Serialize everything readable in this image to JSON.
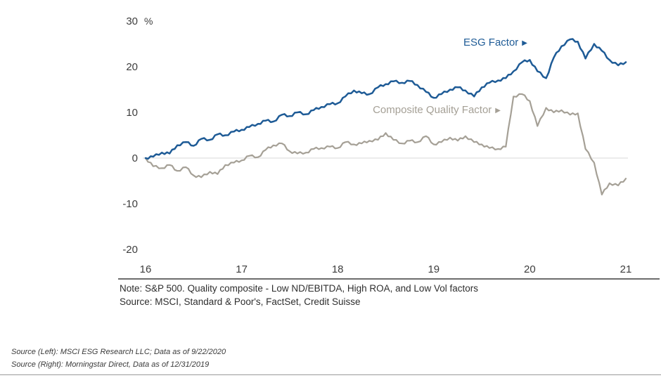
{
  "chart_data": {
    "type": "line",
    "title": "",
    "unit_label": "%",
    "xlim": [
      16,
      21
    ],
    "ylim": [
      -20,
      30
    ],
    "xticks": [
      16,
      17,
      18,
      19,
      20,
      21
    ],
    "yticks": [
      30,
      20,
      10,
      0,
      -10,
      -20
    ],
    "grid": "zero-line-only",
    "legend_position": "inline-annotations",
    "x": [
      16,
      16.08,
      16.17,
      16.25,
      16.33,
      16.42,
      16.5,
      16.58,
      16.67,
      16.75,
      16.83,
      16.92,
      17,
      17.08,
      17.17,
      17.25,
      17.33,
      17.42,
      17.5,
      17.58,
      17.67,
      17.75,
      17.83,
      17.92,
      18,
      18.08,
      18.17,
      18.25,
      18.33,
      18.42,
      18.5,
      18.58,
      18.67,
      18.75,
      18.83,
      18.92,
      19,
      19.08,
      19.17,
      19.25,
      19.33,
      19.42,
      19.5,
      19.58,
      19.67,
      19.75,
      19.83,
      19.92,
      20,
      20.08,
      20.17,
      20.25,
      20.33,
      20.42,
      20.5,
      20.58,
      20.67,
      20.75,
      20.83,
      20.92,
      21
    ],
    "series": [
      {
        "name": "ESG Factor",
        "color": "#1e5b96",
        "values": [
          0,
          0.3,
          1.2,
          1.0,
          2.8,
          3.5,
          2.7,
          4.2,
          4.0,
          5.2,
          5.0,
          5.8,
          6.2,
          6.8,
          7.5,
          8.2,
          8.0,
          9.5,
          9.2,
          10.0,
          9.6,
          10.5,
          11.2,
          11.8,
          12.0,
          13.5,
          14.8,
          14.2,
          14.0,
          15.5,
          16.2,
          16.8,
          16.5,
          16.9,
          16.0,
          14.5,
          13.2,
          14.0,
          15.0,
          15.5,
          14.8,
          13.5,
          15.5,
          16.5,
          17.0,
          17.5,
          19.0,
          21.0,
          21.5,
          19.0,
          17.5,
          22.0,
          24.5,
          26.0,
          25.5,
          21.8,
          25.0,
          23.5,
          21.5,
          20.3,
          21.0
        ]
      },
      {
        "name": "Composite Quality Factor",
        "color": "#a5a096",
        "values": [
          0,
          -1.8,
          -2.2,
          -1.5,
          -2.8,
          -2.0,
          -3.8,
          -4.2,
          -3.0,
          -3.5,
          -1.5,
          -1.0,
          -0.5,
          0.5,
          0.2,
          1.8,
          2.8,
          3.2,
          1.5,
          1.0,
          1.2,
          2.0,
          2.2,
          2.5,
          2.2,
          3.5,
          3.0,
          3.2,
          3.8,
          4.0,
          5.5,
          4.0,
          3.2,
          3.8,
          3.5,
          4.8,
          3.0,
          3.5,
          4.5,
          3.8,
          4.8,
          3.5,
          3.0,
          2.2,
          2.0,
          2.5,
          13.5,
          14.0,
          12.5,
          7.0,
          11.0,
          10.0,
          10.5,
          9.5,
          9.8,
          2.0,
          -1.0,
          -8.0,
          -5.5,
          -6.0,
          -4.5
        ]
      }
    ]
  },
  "icons": {
    "arrow": "▶"
  },
  "notes": {
    "note_line": "Note: S&P 500. Quality composite - Low ND/EBITDA, High ROA, and Low Vol factors",
    "source_line": "Source: MSCI, Standard & Poor's, FactSet, Credit Suisse"
  },
  "footer": {
    "source_left": "Source (Left): MSCI ESG Research LLC; Data as of 9/22/2020",
    "source_right": "Source (Right): Morningstar Direct, Data as of 12/31/2019"
  }
}
